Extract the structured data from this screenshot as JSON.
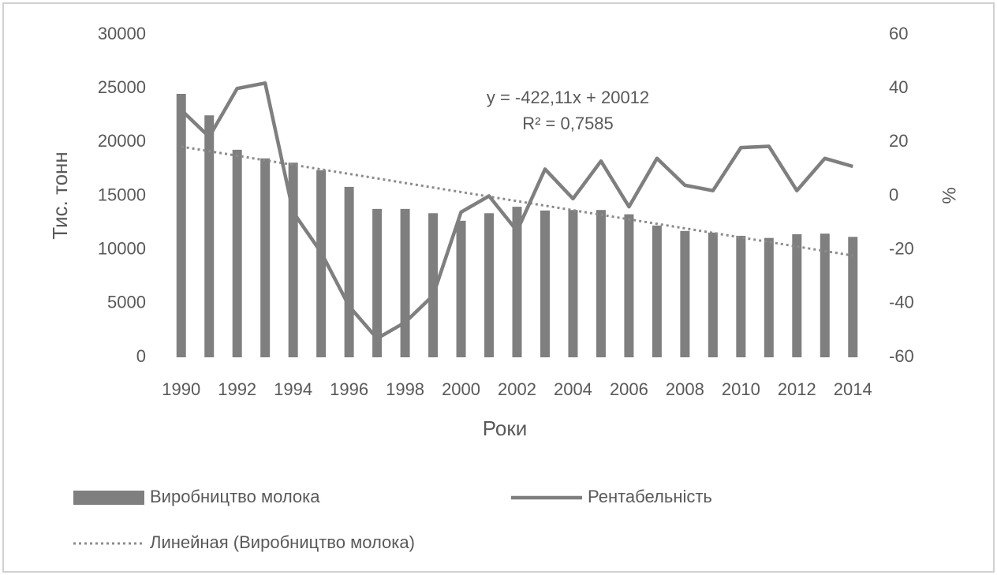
{
  "chart_data": {
    "type": "bar_line",
    "categories": [
      "1990",
      null,
      "1992",
      null,
      "1994",
      null,
      "1996",
      null,
      "1998",
      null,
      "2000",
      null,
      "2002",
      null,
      "2004",
      null,
      "2006",
      null,
      "2008",
      null,
      "2010",
      null,
      "2012",
      null,
      "2014"
    ],
    "series": [
      {
        "name": "Виробництво молока",
        "type": "bar",
        "color": "#7f7f7f",
        "values": [
          24500,
          22500,
          19300,
          18500,
          18100,
          17400,
          15850,
          13800,
          13800,
          13400,
          12700,
          13400,
          14000,
          13650,
          13700,
          13700,
          13300,
          12250,
          11750,
          11600,
          11300,
          11100,
          11450,
          11500,
          11200
        ]
      },
      {
        "name": "Рентабельність",
        "type": "line",
        "axis": "y2",
        "color": "#7f7f7f",
        "values": [
          32,
          22,
          40,
          42,
          -6,
          -21,
          -41,
          -53,
          -47,
          -37,
          -6,
          0,
          -13,
          10,
          -1,
          13,
          -4,
          14,
          4,
          2,
          18,
          18.5,
          2,
          14,
          11
        ]
      },
      {
        "name": "Линейная (Виробництво молока)",
        "type": "trend",
        "color": "#8c8c8c",
        "values": [
          19590,
          19168,
          18746,
          18324,
          17901,
          17479,
          17057,
          16635,
          16213,
          15791,
          15369,
          14947,
          14525,
          14102,
          13680,
          13258,
          12836,
          12414,
          11992,
          11570,
          11148,
          10726,
          10303,
          9881,
          9459
        ]
      }
    ],
    "annotations": [
      "y = -422,11x + 20012",
      "R² = 0,7585"
    ],
    "xlabel": "Роки",
    "ylabel": "Тис. тонн",
    "y2label": "%",
    "ylim": [
      0,
      30000
    ],
    "yticks": [
      0,
      5000,
      10000,
      15000,
      20000,
      25000,
      30000
    ],
    "y2lim": [
      -60,
      60
    ],
    "y2ticks": [
      -60,
      -40,
      -20,
      0,
      20,
      40,
      60
    ],
    "grid": false,
    "legend": "bottom"
  }
}
